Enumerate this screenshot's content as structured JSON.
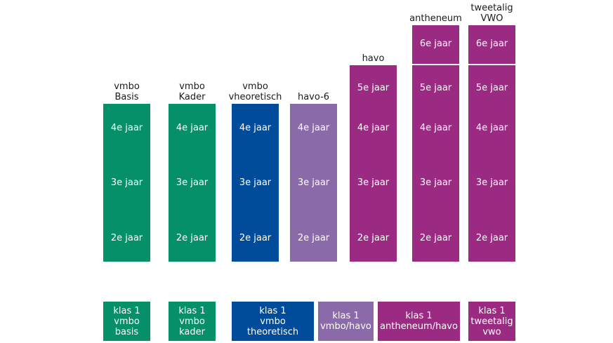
{
  "colors": {
    "green": "#059069",
    "blue": "#004c9b",
    "lilac": "#8a6aa8",
    "magenta": "#9b2b82",
    "white": "#ffffff"
  },
  "tracks": [
    {
      "id": "vmbo-basis",
      "title": [
        "vmbo",
        "Basis"
      ],
      "years": [
        "4e jaar",
        "3e jaar",
        "2e jaar"
      ],
      "color": "green"
    },
    {
      "id": "vmbo-kader",
      "title": [
        "vmbo",
        "Kader"
      ],
      "years": [
        "4e jaar",
        "3e jaar",
        "2e jaar"
      ],
      "color": "green"
    },
    {
      "id": "vmbo-theoretisch",
      "title": [
        "vmbo",
        "vheoretisch"
      ],
      "years": [
        "4e jaar",
        "3e jaar",
        "2e jaar"
      ],
      "color": "blue"
    },
    {
      "id": "havo-6",
      "title": [
        "havo-6"
      ],
      "years": [
        "4e jaar",
        "3e jaar",
        "2e jaar"
      ],
      "color": "lilac"
    },
    {
      "id": "havo",
      "title": [
        "havo"
      ],
      "years": [
        "5e jaar",
        "4e jaar",
        "3e jaar",
        "2e jaar"
      ],
      "color": "magenta"
    },
    {
      "id": "antheneum",
      "title": [
        "antheneum"
      ],
      "top_year": "6e jaar",
      "years": [
        "5e jaar",
        "4e jaar",
        "3e jaar",
        "2e jaar"
      ],
      "color": "magenta"
    },
    {
      "id": "tweetalig-vwo",
      "title": [
        "tweetalig",
        "VWO"
      ],
      "top_year": "6e jaar",
      "years": [
        "5e jaar",
        "4e jaar",
        "3e jaar",
        "2e jaar"
      ],
      "color": "magenta"
    }
  ],
  "klas": [
    {
      "id": "vmbo-basis",
      "lines": [
        "klas 1",
        "vmbo",
        "basis"
      ],
      "color": "green"
    },
    {
      "id": "vmbo-kader",
      "lines": [
        "klas 1",
        "vmbo",
        "kader"
      ],
      "color": "green"
    },
    {
      "id": "vmbo-theoretisch",
      "lines": [
        "klas 1",
        "vmbo",
        "theoretisch"
      ],
      "color": "blue"
    },
    {
      "id": "vmbo-havo",
      "lines": [
        "klas 1",
        "vmbo/havo"
      ],
      "color": "lilac"
    },
    {
      "id": "antheneum-havo",
      "lines": [
        "klas 1",
        "antheneum/havo"
      ],
      "color": "magenta"
    },
    {
      "id": "tweetalig-vwo",
      "lines": [
        "klas 1",
        "tweetalig",
        "vwo"
      ],
      "color": "magenta"
    }
  ]
}
